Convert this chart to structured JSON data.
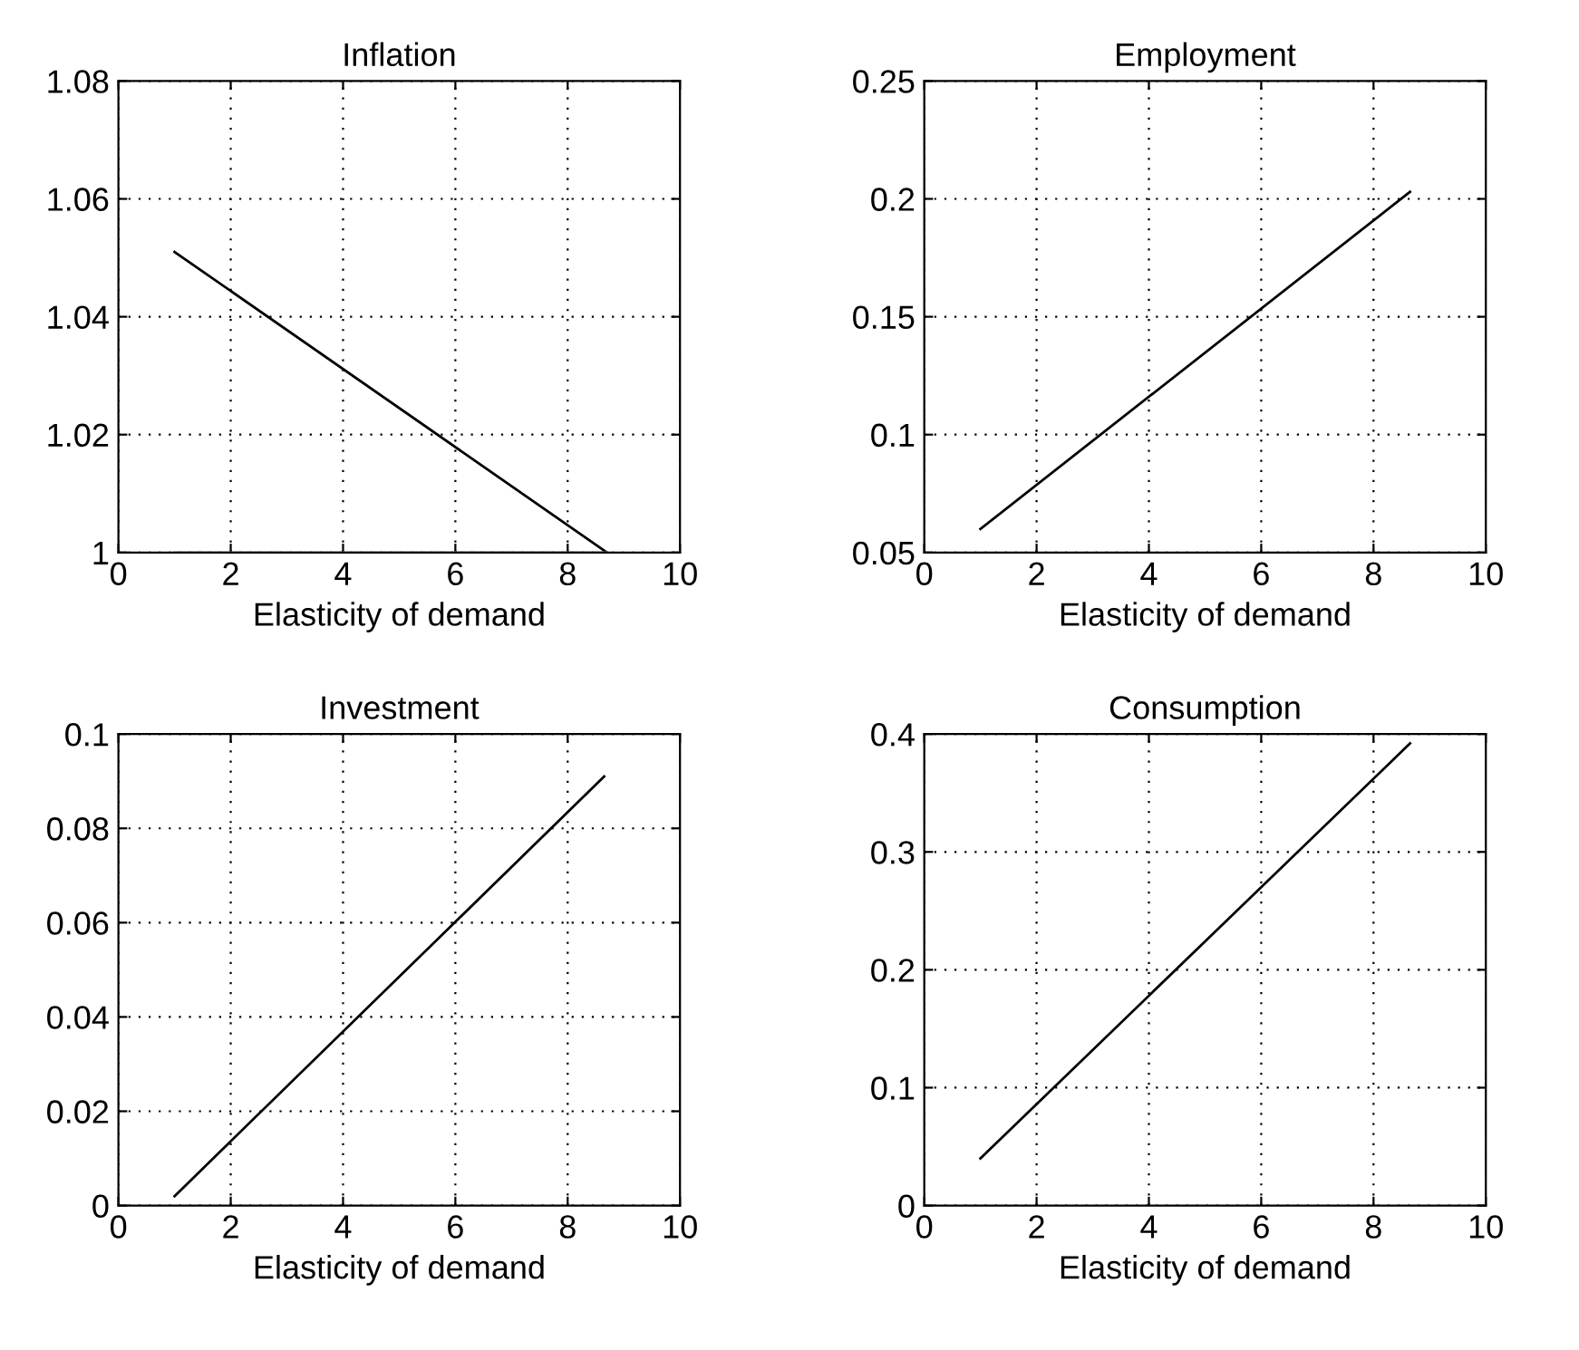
{
  "chart_data": [
    {
      "type": "line",
      "title": "Inflation",
      "xlabel": "Elasticity of demand",
      "xlim": [
        0,
        10
      ],
      "xticks": [
        0,
        2,
        4,
        6,
        8,
        10
      ],
      "ylim": [
        1,
        1.08
      ],
      "yticks": [
        {
          "value": 1,
          "label": "1"
        },
        1.02,
        1.04,
        1.06,
        1.08
      ],
      "grid": true,
      "series": [
        {
          "x": [
            1,
            8.7
          ],
          "values": [
            1.051,
            1.0
          ],
          "color": "#000000"
        },
        {
          "x": [
            1,
            8.7
          ],
          "values": [
            1.0,
            1.0
          ],
          "color": "#999999"
        }
      ]
    },
    {
      "type": "line",
      "title": "Employment",
      "xlabel": "Elasticity of demand",
      "xlim": [
        0,
        10
      ],
      "xticks": [
        0,
        2,
        4,
        6,
        8,
        10
      ],
      "ylim": [
        0.05,
        0.25
      ],
      "yticks": [
        0.05,
        0.1,
        0.15,
        0.2,
        0.25
      ],
      "grid": true,
      "series": [
        {
          "x": [
            1,
            8.65
          ],
          "values": [
            0.06,
            0.203
          ],
          "color": "#000000"
        }
      ]
    },
    {
      "type": "line",
      "title": "Investment",
      "xlabel": "Elasticity of demand",
      "xlim": [
        0,
        10
      ],
      "xticks": [
        0,
        2,
        4,
        6,
        8,
        10
      ],
      "ylim": [
        0,
        0.1
      ],
      "yticks": [
        0,
        0.02,
        0.04,
        0.06,
        0.08,
        0.1
      ],
      "grid": true,
      "series": [
        {
          "x": [
            1,
            8.65
          ],
          "values": [
            0.002,
            0.091
          ],
          "color": "#000000"
        }
      ]
    },
    {
      "type": "line",
      "title": "Consumption",
      "xlabel": "Elasticity of demand",
      "xlim": [
        0,
        10
      ],
      "xticks": [
        0,
        2,
        4,
        6,
        8,
        10
      ],
      "ylim": [
        0,
        0.4
      ],
      "yticks": [
        0,
        0.1,
        0.2,
        0.3,
        0.4
      ],
      "grid": true,
      "series": [
        {
          "x": [
            1,
            8.65
          ],
          "values": [
            0.04,
            0.392
          ],
          "color": "#000000"
        }
      ]
    }
  ]
}
